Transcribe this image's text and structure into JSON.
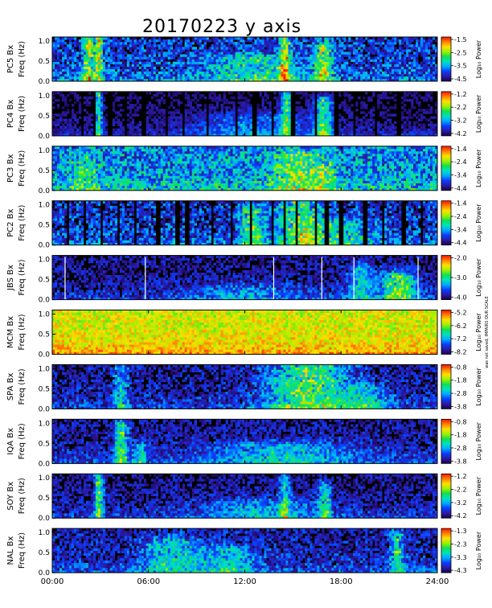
{
  "chart_data": {
    "type": "heatmap",
    "title": "20170223 y axis",
    "x_tick_labels": [
      "00:00",
      "06:00",
      "12:00",
      "18:00",
      "24:00"
    ],
    "xlim_hours": [
      0,
      24
    ],
    "y_tick_labels": [
      "0.0",
      "0.5",
      "1.0"
    ],
    "ylim_hz": [
      0,
      1.1
    ],
    "colorbar_label": "Log₁₀ Power",
    "colormap": [
      "#1a0050",
      "#2a1aa0",
      "#0a3cff",
      "#00a8ff",
      "#00e0c0",
      "#10e050",
      "#a0f000",
      "#ffe000",
      "#ff8000",
      "#ff1000"
    ],
    "panels": [
      {
        "station_label": "PC5 Bx",
        "freq_label": "Freq (Hz)",
        "colorbar_ticks": [
          "-1.5",
          "-2.5",
          "-3.5",
          "-4.5"
        ],
        "base_level": 0.16,
        "noise": 0.2,
        "gaps_hours": [],
        "white_lines_hours": [],
        "events": [
          {
            "t": 2.25,
            "w": 0.5,
            "fmax": 1.0,
            "a": 0.55
          },
          {
            "t": 2.9,
            "w": 0.35,
            "fmax": 1.1,
            "a": 0.6
          },
          {
            "t": 14.5,
            "w": 0.5,
            "fmax": 1.1,
            "a": 0.55
          },
          {
            "t": 16.9,
            "w": 0.8,
            "fmax": 0.9,
            "a": 0.5
          },
          {
            "t": 12.5,
            "w": 4.0,
            "fmax": 0.6,
            "a": 0.3
          }
        ]
      },
      {
        "station_label": "PC4 Bx",
        "freq_label": "Freq (Hz)",
        "colorbar_ticks": [
          "-1.2",
          "-2.2",
          "-3.2",
          "-4.2"
        ],
        "base_level": 0.02,
        "noise": 0.1,
        "gaps_hours": [
          1.9,
          2.6,
          3.6,
          4.6,
          5.7,
          7.1,
          8.2,
          9.7,
          11.5,
          12.6,
          13.7,
          15.0,
          16.4,
          17.7,
          18.8,
          20.2,
          21.6
        ],
        "white_lines_hours": [],
        "events": [
          {
            "t": 2.9,
            "w": 0.3,
            "fmax": 1.1,
            "a": 0.55
          },
          {
            "t": 14.6,
            "w": 0.5,
            "fmax": 1.1,
            "a": 0.5
          },
          {
            "t": 16.9,
            "w": 0.8,
            "fmax": 0.9,
            "a": 0.55
          },
          {
            "t": 12.5,
            "w": 5.0,
            "fmax": 0.5,
            "a": 0.25
          }
        ]
      },
      {
        "station_label": "PC3 Bx",
        "freq_label": "Freq (Hz)",
        "colorbar_ticks": [
          "-1.4",
          "-2.4",
          "-3.4",
          "-4.4"
        ],
        "base_level": 0.3,
        "noise": 0.22,
        "gaps_hours": [],
        "white_lines_hours": [],
        "events": [
          {
            "t": 2.0,
            "w": 1.2,
            "fmax": 0.8,
            "a": 0.2
          },
          {
            "t": 15.2,
            "w": 2.2,
            "fmax": 0.9,
            "a": 0.3
          },
          {
            "t": 17.0,
            "w": 1.0,
            "fmax": 0.6,
            "a": 0.25
          }
        ]
      },
      {
        "station_label": "PC2 Bx",
        "freq_label": "Freq (Hz)",
        "colorbar_ticks": [
          "-1.4",
          "-2.4",
          "-3.4",
          "-4.4"
        ],
        "base_level": 0.14,
        "noise": 0.2,
        "gaps_hours": [
          1.0,
          2.0,
          3.1,
          4.1,
          5.2,
          6.6,
          7.8,
          8.4,
          10.0,
          11.2,
          12.4,
          13.7,
          14.5,
          15.2,
          16.4,
          17.1,
          18.0,
          19.5,
          20.6,
          21.9,
          23.0
        ],
        "white_lines_hours": [],
        "events": [
          {
            "t": 12.4,
            "w": 1.0,
            "fmax": 0.9,
            "a": 0.45
          },
          {
            "t": 15.4,
            "w": 2.0,
            "fmax": 1.1,
            "a": 0.45
          },
          {
            "t": 18.0,
            "w": 3.0,
            "fmax": 0.6,
            "a": 0.3
          }
        ]
      },
      {
        "station_label": "JBS Bx",
        "freq_label": "Freq (Hz)",
        "colorbar_ticks": [
          "-2.0",
          "-3.0",
          "-4.0"
        ],
        "base_level": 0.06,
        "noise": 0.14,
        "gaps_hours": [],
        "white_lines_hours": [
          0.8,
          5.8,
          13.8,
          16.8,
          18.8,
          22.8
        ],
        "events": [
          {
            "t": 21.6,
            "w": 1.6,
            "fmax": 0.6,
            "a": 0.55
          },
          {
            "t": 19.2,
            "w": 1.2,
            "fmax": 0.8,
            "a": 0.35
          },
          {
            "t": 12.0,
            "w": 5.0,
            "fmax": 0.3,
            "a": 0.2
          }
        ]
      },
      {
        "station_label": "MCM Bx",
        "freq_label": "Freq (Hz)",
        "colorbar_ticks": [
          "-5.2",
          "-6.2",
          "-7.2",
          "-8.2"
        ],
        "colorbar_note": "was not saved, IMPAIRS OUR SCALE",
        "base_level": 0.72,
        "noise": 0.12,
        "gaps_hours": [],
        "white_lines_hours": [],
        "events": []
      },
      {
        "station_label": "SPA Bx",
        "freq_label": "Freq (Hz)",
        "colorbar_ticks": [
          "-0.8",
          "-1.8",
          "-2.8",
          "-3.8"
        ],
        "base_level": 0.08,
        "noise": 0.16,
        "gaps_hours": [],
        "white_lines_hours": [],
        "events": [
          {
            "t": 4.3,
            "w": 0.6,
            "fmax": 1.0,
            "a": 0.35
          },
          {
            "t": 16.0,
            "w": 3.5,
            "fmax": 1.1,
            "a": 0.55
          },
          {
            "t": 19.5,
            "w": 2.0,
            "fmax": 0.5,
            "a": 0.3
          }
        ]
      },
      {
        "station_label": "IQA Bx",
        "freq_label": "Freq (Hz)",
        "colorbar_ticks": [
          "-0.8",
          "-1.8",
          "-2.8",
          "-3.8"
        ],
        "base_level": 0.08,
        "noise": 0.14,
        "gaps_hours": [],
        "white_lines_hours": [],
        "events": [
          {
            "t": 4.3,
            "w": 0.6,
            "fmax": 1.0,
            "a": 0.5
          },
          {
            "t": 5.5,
            "w": 0.6,
            "fmax": 0.4,
            "a": 0.35
          },
          {
            "t": 14.5,
            "w": 6.0,
            "fmax": 0.45,
            "a": 0.3
          }
        ]
      },
      {
        "station_label": "SOY Bx",
        "freq_label": "Freq (Hz)",
        "colorbar_ticks": [
          "-1.2",
          "-2.2",
          "-3.2",
          "-4.2"
        ],
        "base_level": 0.06,
        "noise": 0.14,
        "gaps_hours": [],
        "white_lines_hours": [],
        "events": [
          {
            "t": 2.9,
            "w": 0.4,
            "fmax": 1.1,
            "a": 0.55
          },
          {
            "t": 14.5,
            "w": 0.5,
            "fmax": 1.1,
            "a": 0.4
          },
          {
            "t": 17.0,
            "w": 0.6,
            "fmax": 0.8,
            "a": 0.4
          },
          {
            "t": 13.0,
            "w": 5.0,
            "fmax": 0.4,
            "a": 0.25
          }
        ]
      },
      {
        "station_label": "NAL Bx",
        "freq_label": "Freq (Hz)",
        "colorbar_ticks": [
          "-1.3",
          "-2.3",
          "-3.3",
          "-4.3"
        ],
        "base_level": 0.1,
        "noise": 0.16,
        "gaps_hours": [],
        "white_lines_hours": [],
        "events": [
          {
            "t": 7.5,
            "w": 2.5,
            "fmax": 0.8,
            "a": 0.35
          },
          {
            "t": 11.0,
            "w": 2.5,
            "fmax": 0.6,
            "a": 0.3
          },
          {
            "t": 21.5,
            "w": 0.6,
            "fmax": 1.0,
            "a": 0.4
          }
        ]
      }
    ]
  }
}
